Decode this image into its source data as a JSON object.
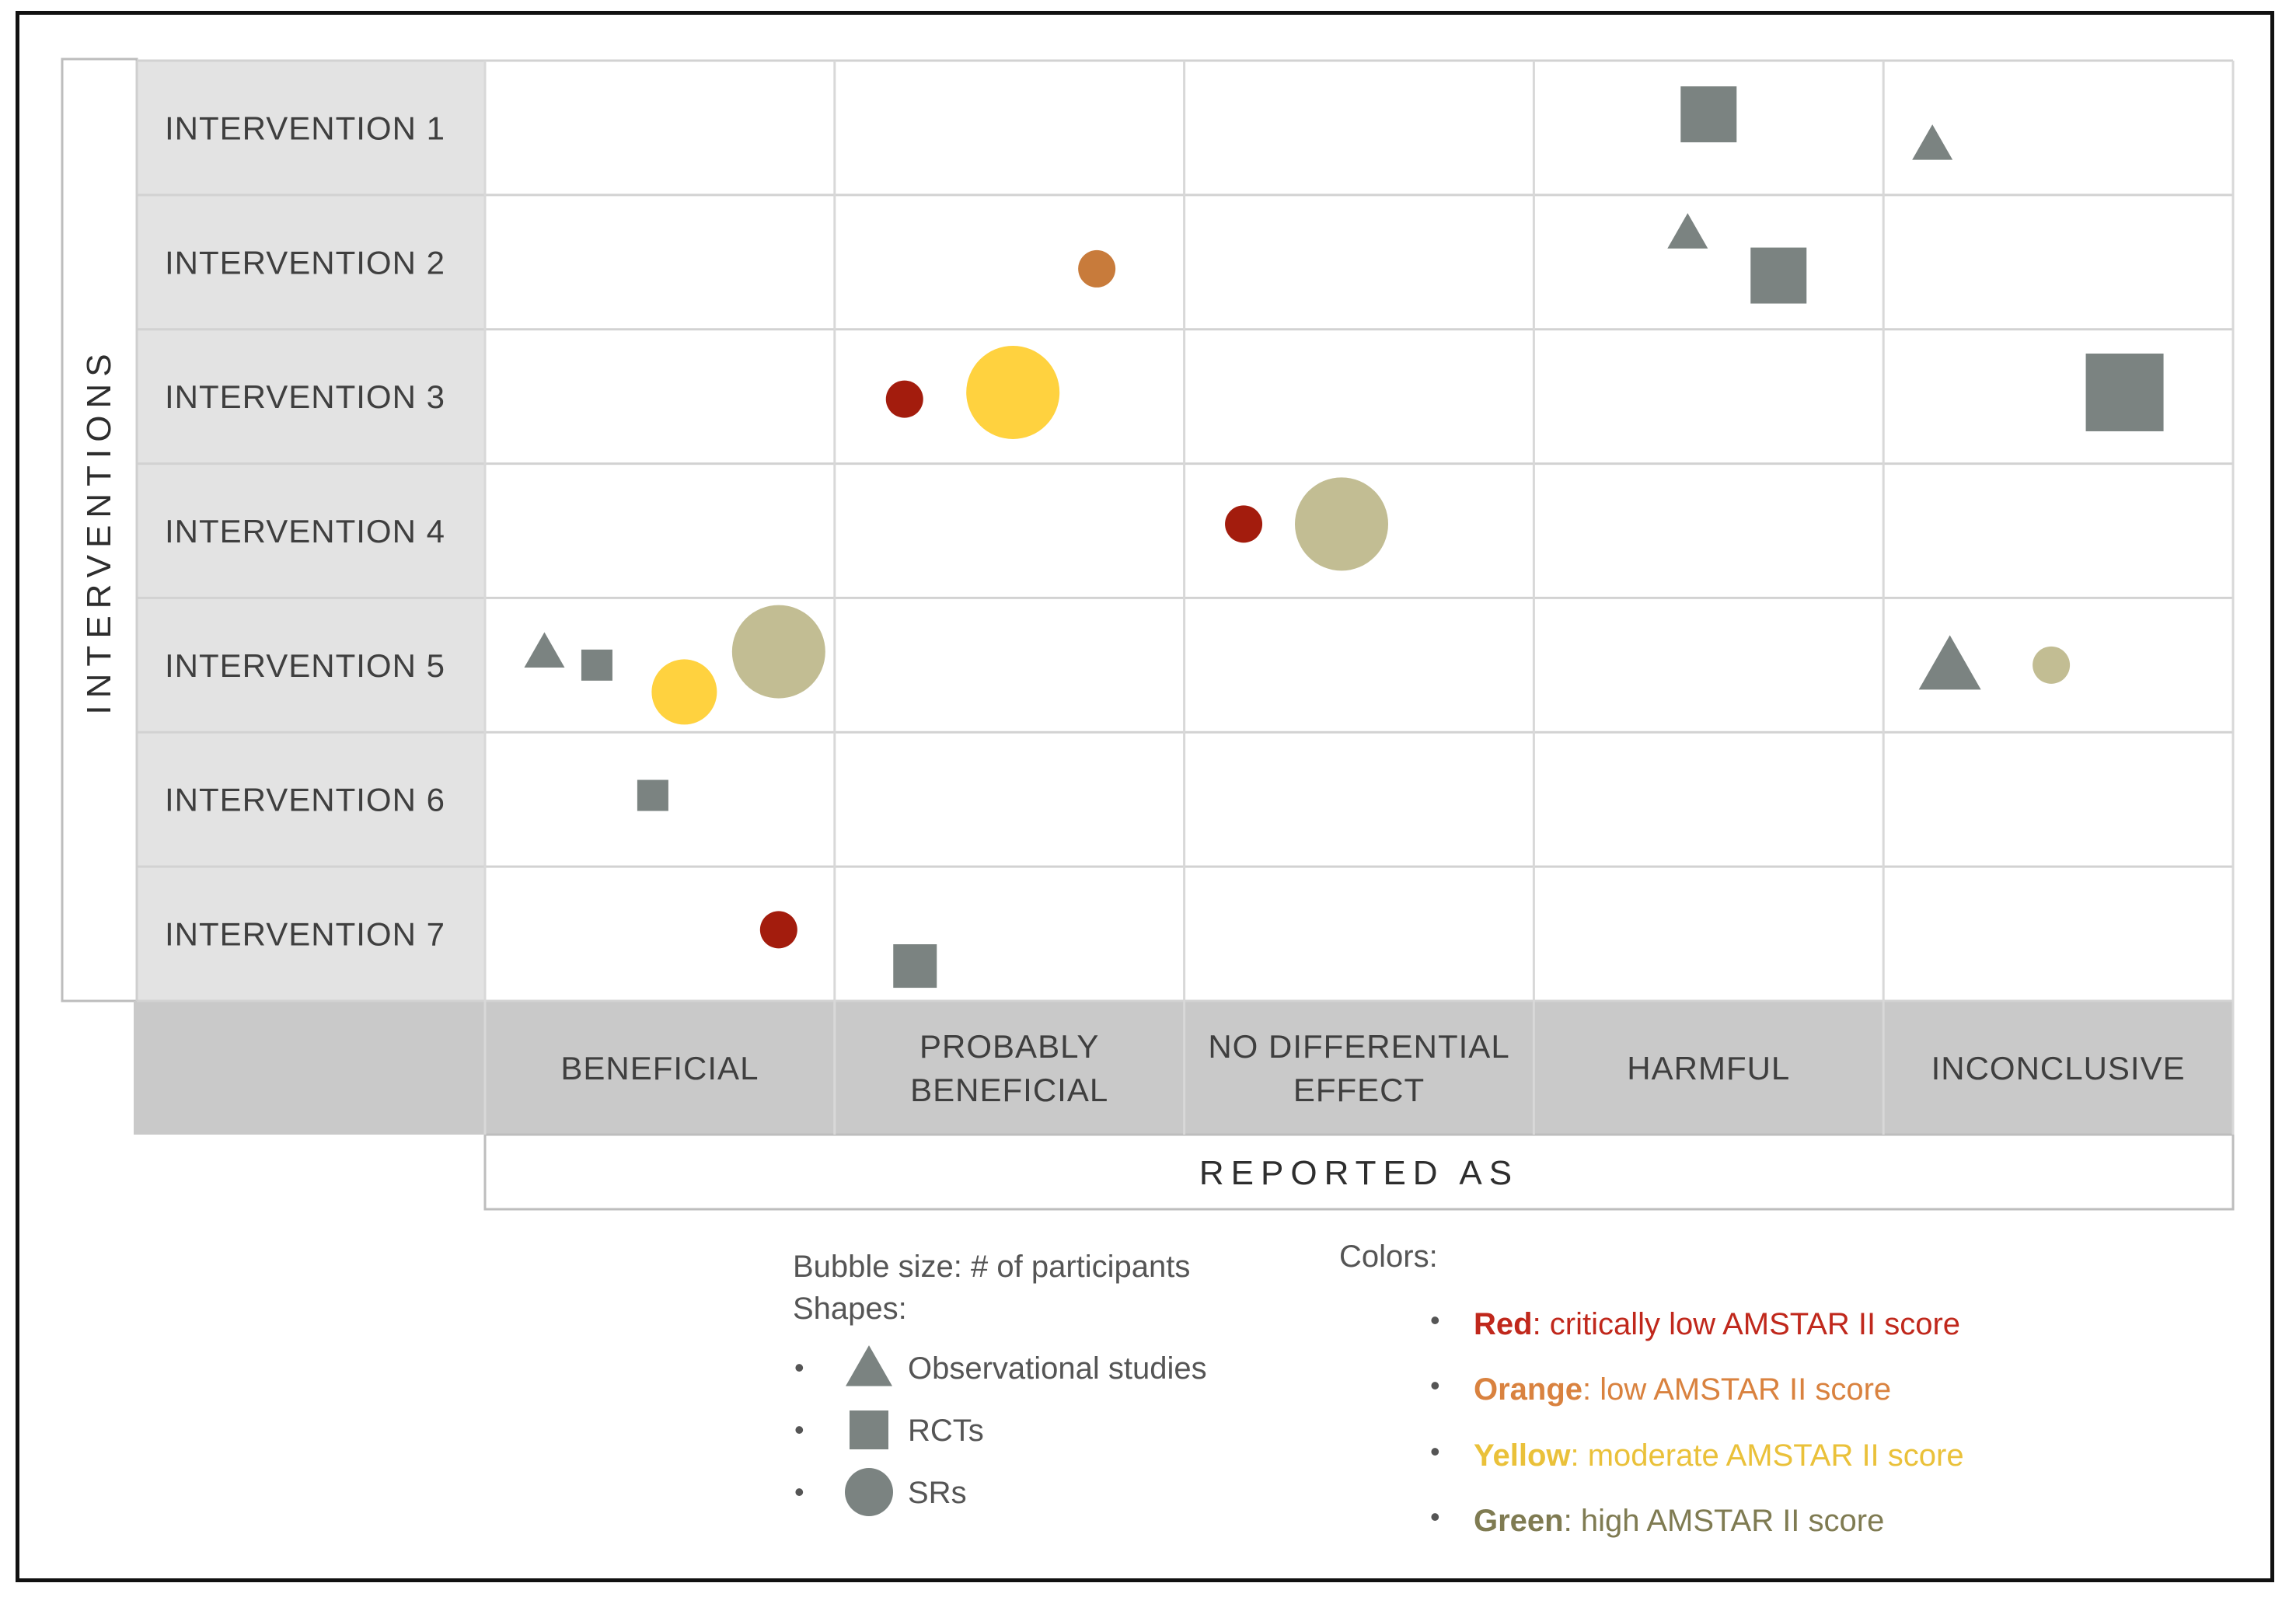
{
  "chart_data": {
    "type": "bubble-matrix",
    "y_axis_title": "INTERVENTIONS",
    "x_axis_title": "REPORTED AS",
    "rows": [
      "INTERVENTION 1",
      "INTERVENTION 2",
      "INTERVENTION 3",
      "INTERVENTION 4",
      "INTERVENTION 5",
      "INTERVENTION 6",
      "INTERVENTION 7"
    ],
    "columns": [
      [
        "BENEFICIAL"
      ],
      [
        "PROBABLY",
        "BENEFICIAL"
      ],
      [
        "NO DIFFERENTIAL",
        "EFFECT"
      ],
      [
        "HARMFUL"
      ],
      [
        "INCONCLUSIVE"
      ]
    ],
    "marks": [
      {
        "row": 0,
        "col": 3,
        "shape": "square",
        "color": "grey",
        "size": 3,
        "offset": [
          0.0,
          -0.1
        ]
      },
      {
        "row": 0,
        "col": 4,
        "shape": "triangle",
        "color": "grey",
        "size": 2,
        "offset": [
          -0.36,
          0.12
        ]
      },
      {
        "row": 1,
        "col": 1,
        "shape": "circle",
        "color": "orange",
        "size": 2,
        "offset": [
          0.25,
          0.05
        ]
      },
      {
        "row": 1,
        "col": 3,
        "shape": "triangle",
        "color": "grey",
        "size": 2,
        "offset": [
          -0.06,
          -0.22
        ]
      },
      {
        "row": 1,
        "col": 3,
        "shape": "square",
        "color": "grey",
        "size": 3,
        "offset": [
          0.2,
          0.1
        ]
      },
      {
        "row": 2,
        "col": 1,
        "shape": "circle",
        "color": "red",
        "size": 2,
        "offset": [
          -0.3,
          0.02
        ]
      },
      {
        "row": 2,
        "col": 1,
        "shape": "circle",
        "color": "yellow",
        "size": 5,
        "offset": [
          0.01,
          -0.03
        ]
      },
      {
        "row": 2,
        "col": 4,
        "shape": "square",
        "color": "grey",
        "size": 5,
        "offset": [
          0.19,
          -0.03
        ]
      },
      {
        "row": 3,
        "col": 2,
        "shape": "circle",
        "color": "red",
        "size": 2,
        "offset": [
          -0.33,
          -0.05
        ]
      },
      {
        "row": 3,
        "col": 2,
        "shape": "circle",
        "color": "green",
        "size": 5,
        "offset": [
          -0.05,
          -0.05
        ]
      },
      {
        "row": 4,
        "col": 0,
        "shape": "triangle",
        "color": "grey",
        "size": 2,
        "offset": [
          -0.33,
          -0.1
        ]
      },
      {
        "row": 4,
        "col": 0,
        "shape": "square",
        "color": "grey",
        "size": 1,
        "offset": [
          -0.18,
          0.0
        ]
      },
      {
        "row": 4,
        "col": 0,
        "shape": "circle",
        "color": "yellow",
        "size": 3,
        "offset": [
          0.07,
          0.2
        ]
      },
      {
        "row": 4,
        "col": 0,
        "shape": "circle",
        "color": "green",
        "size": 5,
        "offset": [
          0.34,
          -0.1
        ]
      },
      {
        "row": 4,
        "col": 4,
        "shape": "triangle",
        "color": "grey",
        "size": 3,
        "offset": [
          -0.31,
          0.0
        ]
      },
      {
        "row": 4,
        "col": 4,
        "shape": "circle",
        "color": "green",
        "size": 2,
        "offset": [
          -0.02,
          0.0
        ]
      },
      {
        "row": 5,
        "col": 0,
        "shape": "square",
        "color": "grey",
        "size": 1,
        "offset": [
          -0.02,
          -0.03
        ]
      },
      {
        "row": 6,
        "col": 0,
        "shape": "circle",
        "color": "red",
        "size": 2,
        "offset": [
          0.34,
          -0.03
        ]
      },
      {
        "row": 6,
        "col": 1,
        "shape": "square",
        "color": "grey",
        "size": 2,
        "offset": [
          -0.27,
          0.24
        ]
      }
    ],
    "colors": {
      "grey": "#7b8381",
      "red": "#a31c0d",
      "orange": "#c87b3b",
      "yellow": "#ffd23f",
      "green": "#c2bd93"
    }
  },
  "legend": {
    "bubble_size": "Bubble size: # of participants",
    "shapes_title": "Shapes:",
    "shapes": [
      {
        "shape": "triangle",
        "label": "Observational studies"
      },
      {
        "shape": "square",
        "label": "RCTs"
      },
      {
        "shape": "circle",
        "label": "SRs"
      }
    ],
    "colors_title": "Colors:",
    "colors": [
      {
        "key": "Red",
        "desc": ": critically low AMSTAR II score",
        "color": "#c0281c"
      },
      {
        "key": "Orange",
        "desc": ": low AMSTAR II score",
        "color": "#d9823f"
      },
      {
        "key": "Yellow",
        "desc": ": moderate AMSTAR II score",
        "color": "#eac13a"
      },
      {
        "key": "Green",
        "desc": ": high AMSTAR II score",
        "color": "#7f7b52"
      }
    ],
    "bullet": "•"
  }
}
